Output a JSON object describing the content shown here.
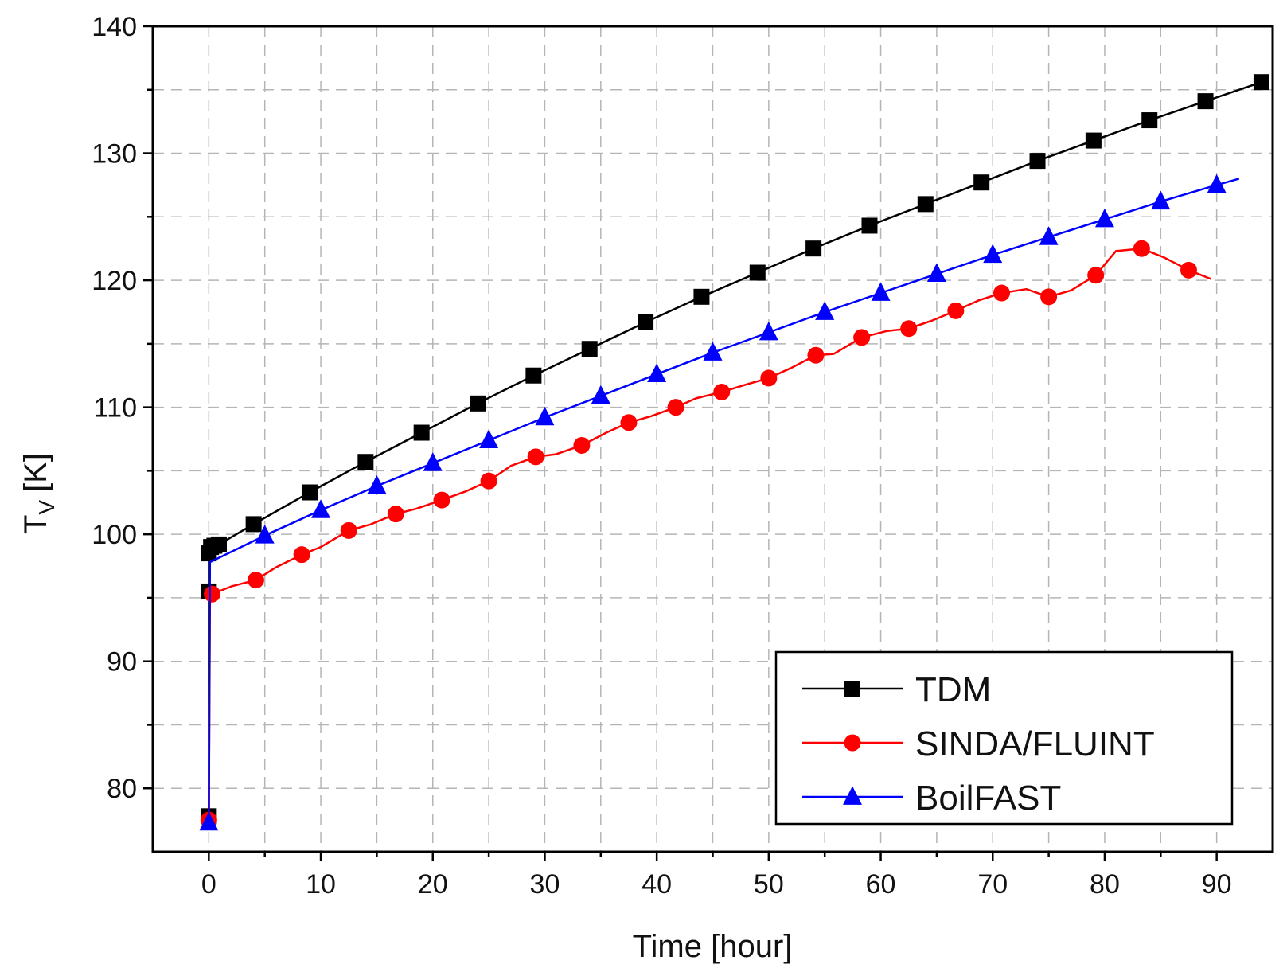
{
  "chart_data": {
    "type": "line",
    "title": "",
    "xlabel": "Time [hour]",
    "ylabel_main": "T",
    "ylabel_sub": "V",
    "ylabel_unit": "[K]",
    "xlim": [
      -5,
      95
    ],
    "ylim": [
      75,
      140
    ],
    "xticks": [
      0,
      10,
      20,
      30,
      40,
      50,
      60,
      70,
      80,
      90
    ],
    "yticks": [
      80,
      90,
      100,
      110,
      120,
      130,
      140
    ],
    "xtick_labels": [
      "0",
      "10",
      "20",
      "30",
      "40",
      "50",
      "60",
      "70",
      "80",
      "90"
    ],
    "ytick_labels": [
      "80",
      "90",
      "100",
      "110",
      "120",
      "130",
      "140"
    ],
    "grid": true,
    "legend_position": "bottom-right",
    "series": [
      {
        "name": "TDM",
        "color": "#000000",
        "marker": "square",
        "x": [
          0,
          0,
          0,
          0.2,
          0.5,
          0.9,
          4,
          9,
          14,
          19,
          24,
          29,
          34,
          39,
          44,
          49,
          54,
          59,
          64,
          69,
          74,
          79,
          84,
          89,
          94
        ],
        "y": [
          77.8,
          95.5,
          98.5,
          99.0,
          99.1,
          99.2,
          100.8,
          103.3,
          105.7,
          108.0,
          110.3,
          112.5,
          114.6,
          116.7,
          118.7,
          120.6,
          122.5,
          124.3,
          126.0,
          127.7,
          129.4,
          131.0,
          132.6,
          134.1,
          135.6
        ],
        "markers": [
          [
            0,
            77.8
          ],
          [
            0,
            95.5
          ],
          [
            0,
            98.5
          ],
          [
            0.2,
            99.0
          ],
          [
            0.5,
            99.1
          ],
          [
            0.9,
            99.2
          ],
          [
            4,
            100.8
          ],
          [
            9,
            103.3
          ],
          [
            14,
            105.7
          ],
          [
            19,
            108.0
          ],
          [
            24,
            110.3
          ],
          [
            29,
            112.5
          ],
          [
            34,
            114.6
          ],
          [
            39,
            116.7
          ],
          [
            44,
            118.7
          ],
          [
            49,
            120.6
          ],
          [
            54,
            122.5
          ],
          [
            59,
            124.3
          ],
          [
            64,
            126.0
          ],
          [
            69,
            127.7
          ],
          [
            74,
            129.4
          ],
          [
            79,
            131.0
          ],
          [
            84,
            132.6
          ],
          [
            89,
            134.1
          ],
          [
            94,
            135.6
          ]
        ]
      },
      {
        "name": "SINDA/FLUINT",
        "color": "#ff0000",
        "marker": "circle",
        "x": [
          0,
          0.1,
          0.3,
          2,
          4.2,
          6,
          8.3,
          10,
          12.5,
          14.5,
          16.7,
          18.5,
          20.8,
          23,
          25,
          27,
          29.2,
          31,
          33.3,
          35.5,
          37.5,
          39.5,
          41.7,
          43.5,
          45.8,
          48,
          50,
          52,
          54.2,
          55.8,
          58.3,
          60.5,
          62.5,
          64.5,
          66.7,
          68.7,
          70.8,
          73,
          75,
          77,
          79.2,
          81,
          83.3,
          85.3,
          87.5,
          89.5
        ],
        "y": [
          77.5,
          94.5,
          95.3,
          95.9,
          96.4,
          97.4,
          98.4,
          99.0,
          100.3,
          100.8,
          101.6,
          102.0,
          102.7,
          103.4,
          104.2,
          105.4,
          106.1,
          106.3,
          107.0,
          108.0,
          108.8,
          109.3,
          110.0,
          110.7,
          111.2,
          111.8,
          112.3,
          113.1,
          114.1,
          114.2,
          115.5,
          116.0,
          116.2,
          116.8,
          117.6,
          118.4,
          119.0,
          119.3,
          118.7,
          119.2,
          120.4,
          122.3,
          122.5,
          121.8,
          120.8,
          120.1
        ],
        "markers": [
          [
            0,
            77.5
          ],
          [
            0.3,
            95.3
          ],
          [
            4.2,
            96.4
          ],
          [
            8.3,
            98.4
          ],
          [
            12.5,
            100.3
          ],
          [
            16.7,
            101.6
          ],
          [
            20.8,
            102.7
          ],
          [
            25,
            104.2
          ],
          [
            29.2,
            106.1
          ],
          [
            33.3,
            107.0
          ],
          [
            37.5,
            108.8
          ],
          [
            41.7,
            110.0
          ],
          [
            45.8,
            111.2
          ],
          [
            50,
            112.3
          ],
          [
            54.2,
            114.1
          ],
          [
            58.3,
            115.5
          ],
          [
            62.5,
            116.2
          ],
          [
            66.7,
            117.6
          ],
          [
            70.8,
            119.0
          ],
          [
            75,
            118.7
          ],
          [
            79.2,
            120.4
          ],
          [
            83.3,
            122.5
          ],
          [
            87.5,
            120.8
          ]
        ]
      },
      {
        "name": "BoilFAST",
        "color": "#0000ff",
        "marker": "triangle",
        "x": [
          0,
          0.1,
          0.3,
          5,
          10,
          15,
          20,
          25,
          30,
          35,
          40,
          45,
          50,
          55,
          60,
          65,
          70,
          75,
          80,
          85,
          90,
          92
        ],
        "y": [
          77.3,
          97.8,
          97.9,
          99.9,
          101.9,
          103.8,
          105.6,
          107.4,
          109.2,
          110.9,
          112.6,
          114.3,
          115.9,
          117.5,
          119.0,
          120.5,
          122.0,
          123.4,
          124.8,
          126.2,
          127.5,
          128.0
        ],
        "markers": [
          [
            0,
            77.3
          ],
          [
            5,
            99.9
          ],
          [
            10,
            101.9
          ],
          [
            15,
            103.8
          ],
          [
            20,
            105.6
          ],
          [
            25,
            107.4
          ],
          [
            30,
            109.2
          ],
          [
            35,
            110.9
          ],
          [
            40,
            112.6
          ],
          [
            45,
            114.3
          ],
          [
            50,
            115.9
          ],
          [
            55,
            117.5
          ],
          [
            60,
            119.0
          ],
          [
            65,
            120.5
          ],
          [
            70,
            122.0
          ],
          [
            75,
            123.4
          ],
          [
            80,
            124.8
          ],
          [
            85,
            126.2
          ],
          [
            90,
            127.5
          ]
        ]
      }
    ]
  }
}
